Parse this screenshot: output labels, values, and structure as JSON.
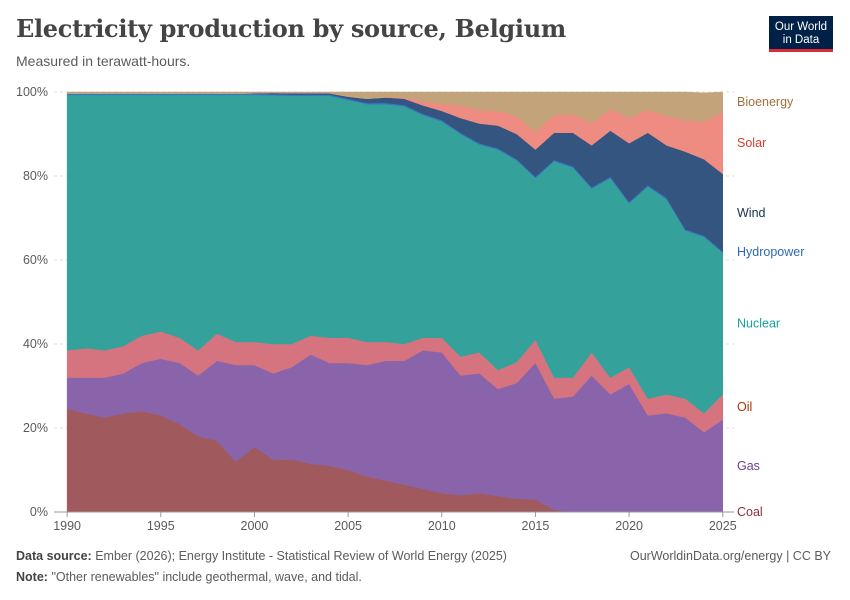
{
  "header": {
    "title": "Electricity production by source, Belgium",
    "subtitle": "Measured in terawatt-hours."
  },
  "logo": {
    "line1": "Our World",
    "line2": "in Data"
  },
  "footer": {
    "source_label": "Data source:",
    "source_text": "Ember (2026); Energy Institute - Statistical Review of World Energy (2025)",
    "note_label": "Note:",
    "note_text": "\"Other renewables\" include geothermal, wave, and tidal.",
    "credit": "OurWorldinData.org/energy | CC BY"
  },
  "chart_data": {
    "type": "area",
    "stacked_percent": true,
    "x": [
      1990,
      1991,
      1992,
      1993,
      1994,
      1995,
      1996,
      1997,
      1998,
      1999,
      2000,
      2001,
      2002,
      2003,
      2004,
      2005,
      2006,
      2007,
      2008,
      2009,
      2010,
      2011,
      2012,
      2013,
      2014,
      2015,
      2016,
      2017,
      2018,
      2019,
      2020,
      2021,
      2022,
      2023,
      2024,
      2025
    ],
    "xlim": [
      1989.3,
      2025.6
    ],
    "ylim": [
      0,
      100
    ],
    "y_ticks": [
      0,
      20,
      40,
      60,
      80,
      100
    ],
    "y_tick_labels": [
      "0%",
      "20%",
      "40%",
      "60%",
      "80%",
      "100%"
    ],
    "x_ticks": [
      1990,
      1995,
      2000,
      2005,
      2010,
      2015,
      2020,
      2025
    ],
    "x_tick_labels": [
      "1990",
      "1995",
      "2000",
      "2005",
      "2010",
      "2015",
      "2020",
      "2025"
    ],
    "series": [
      {
        "name": "Coal",
        "color": "#a2559c",
        "fill": "#a05a5d",
        "label_color": "#883039",
        "values": [
          24.5,
          23.5,
          22.5,
          23.5,
          24,
          23,
          21,
          18,
          17,
          12,
          15.5,
          12.5,
          12.5,
          11.5,
          11,
          10,
          8.5,
          7.5,
          6.5,
          5.5,
          4.5,
          4,
          4.5,
          3.8,
          3.2,
          3,
          0.5,
          0,
          0,
          0,
          0,
          0,
          0,
          0,
          0,
          0
        ]
      },
      {
        "name": "Gas",
        "fill": "#8a64ab",
        "label_color": "#6d3e91",
        "values": [
          7.5,
          8.5,
          9.5,
          9.5,
          11.5,
          13.5,
          14.5,
          14.5,
          19,
          23,
          19.5,
          20.5,
          22,
          26,
          24.5,
          25.5,
          26.5,
          28.5,
          29.5,
          33,
          33.5,
          28.5,
          28.5,
          25.5,
          27.5,
          32.5,
          26.5,
          27.5,
          32.5,
          28,
          30.5,
          23,
          23.5,
          22.5,
          19,
          22
        ]
      },
      {
        "name": "Oil",
        "fill": "#d5737f",
        "label_color": "#b13507",
        "values": [
          6.5,
          7,
          6.5,
          6.5,
          6.5,
          6.5,
          6,
          6,
          6.5,
          5.5,
          5.5,
          7,
          5.5,
          4.5,
          6,
          6,
          5.5,
          4.5,
          4,
          3,
          3.5,
          4.5,
          5,
          4.5,
          5,
          5.5,
          5,
          4.5,
          5.5,
          4,
          4,
          4,
          4.5,
          4.5,
          4.5,
          6
        ]
      },
      {
        "name": "Nuclear",
        "fill": "#34a29a",
        "label_color": "#18a39b",
        "values": [
          60.8,
          60.3,
          60.8,
          59.8,
          57.3,
          56.3,
          57.8,
          60.8,
          56.8,
          58.8,
          58.8,
          59.2,
          59.1,
          57.1,
          57.6,
          56.6,
          56.6,
          56.6,
          56.6,
          53,
          51.5,
          53,
          49.5,
          52.5,
          48,
          38.5,
          51.5,
          50,
          39,
          47.5,
          39,
          50.5,
          46.5,
          40,
          42,
          33.7
        ]
      },
      {
        "name": "Hydropower",
        "fill": "#3777c6",
        "label_color": "#2c6ab3",
        "values": [
          0.3,
          0.3,
          0.3,
          0.3,
          0.3,
          0.3,
          0.3,
          0.3,
          0.3,
          0.3,
          0.3,
          0.3,
          0.3,
          0.3,
          0.3,
          0.3,
          0.3,
          0.3,
          0.3,
          0.3,
          0.3,
          0.3,
          0.3,
          0.3,
          0.3,
          0.3,
          0.3,
          0.3,
          0.3,
          0.3,
          0.3,
          0.3,
          0.3,
          0.3,
          0.3,
          0.3
        ]
      },
      {
        "name": "Wind",
        "fill": "#345580",
        "label_color": "#18314e",
        "values": [
          0,
          0,
          0,
          0,
          0,
          0,
          0,
          0,
          0,
          0,
          0.1,
          0.3,
          0.3,
          0.3,
          0.3,
          0.5,
          1,
          1.3,
          1.5,
          2,
          2.2,
          3.5,
          4.7,
          5.4,
          6,
          6.5,
          6.5,
          8,
          10,
          11,
          14,
          12.5,
          12.5,
          18.5,
          18.2,
          18.5
        ]
      },
      {
        "name": "Solar",
        "fill": "#ee8c82",
        "label_color": "#d73c31",
        "values": [
          0,
          0,
          0,
          0,
          0,
          0,
          0,
          0,
          0,
          0,
          0,
          0,
          0,
          0,
          0,
          0,
          0,
          0,
          0.3,
          1,
          1.7,
          3,
          3.2,
          3.5,
          4.2,
          4.3,
          4.2,
          4.5,
          5.3,
          5.2,
          6,
          5.5,
          7,
          7.5,
          9,
          14.7
        ]
      },
      {
        "name": "Bioenergy",
        "fill": "#c3a47a",
        "label_color": "#a2713d",
        "values": [
          0.4,
          0.4,
          0.4,
          0.4,
          0.4,
          0.4,
          0.4,
          0.4,
          0.4,
          0.4,
          0.3,
          0.2,
          0.3,
          0.3,
          0.3,
          1.1,
          1.6,
          1.3,
          1.3,
          2.2,
          2.8,
          3.2,
          4.3,
          4.5,
          5.8,
          9.4,
          5.5,
          5.2,
          7.4,
          4,
          6.2,
          4.2,
          5.7,
          6.7,
          6.8,
          4.8
        ]
      }
    ]
  }
}
